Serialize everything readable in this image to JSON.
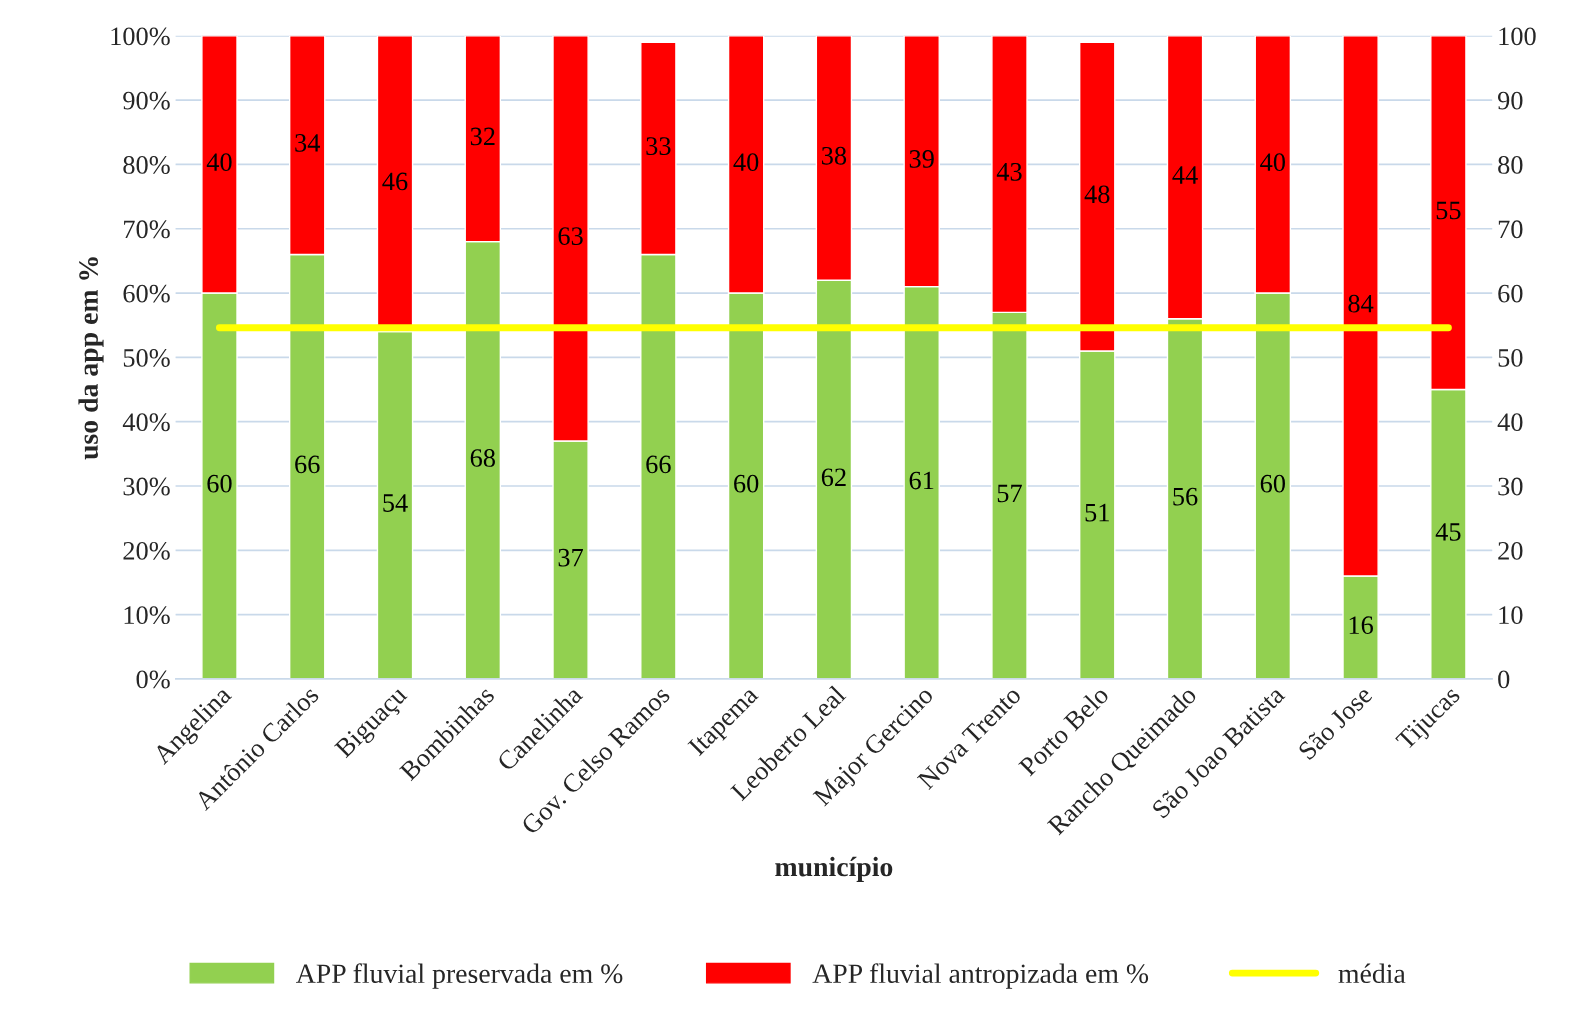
{
  "chart_data": {
    "type": "bar",
    "stacked": true,
    "xlabel": "município",
    "ylabel": "uso da app em %",
    "categories": [
      "Angelina",
      "Antônio Carlos",
      "Biguaçu",
      "Bombinhas",
      "Canelinha",
      "Gov. Celso Ramos",
      "Itapema",
      "Leoberto Leal",
      "Major Gercino",
      "Nova Trento",
      "Porto Belo",
      "Rancho Queimado",
      "São Joao Batista",
      "São Jose",
      "Tijucas"
    ],
    "series": [
      {
        "name": "APP fluvial preservada em %",
        "color": "#92d050",
        "values": [
          60,
          66,
          54,
          68,
          37,
          66,
          60,
          62,
          61,
          57,
          51,
          56,
          60,
          16,
          45
        ],
        "value_labels": [
          "60",
          "66",
          "54",
          "68",
          "37",
          "66",
          "60",
          "62",
          "61",
          "57",
          "51",
          "56",
          "60",
          "16",
          "45"
        ]
      },
      {
        "name": "APP fluvial antropizada em %",
        "color": "#ff0000",
        "values": [
          40,
          34,
          46,
          32,
          63,
          33,
          40,
          38,
          39,
          43,
          48,
          44,
          40,
          84,
          55
        ],
        "value_labels": [
          "40",
          "34",
          "46",
          "32",
          "63",
          "33",
          "40",
          "38",
          "39",
          "43",
          "48",
          "44",
          "40",
          "84",
          "55"
        ]
      },
      {
        "name": "média",
        "type": "line",
        "axis": "y2",
        "color": "#ffff00",
        "values": [
          54.6,
          54.6,
          54.6,
          54.6,
          54.6,
          54.6,
          54.6,
          54.6,
          54.6,
          54.6,
          54.6,
          54.6,
          54.6,
          54.6,
          54.6
        ]
      }
    ],
    "ylim": [
      0,
      100
    ],
    "yticks": [
      {
        "value": 0,
        "label": "0%"
      },
      {
        "value": 10,
        "label": "10%"
      },
      {
        "value": 20,
        "label": "20%"
      },
      {
        "value": 30,
        "label": "30%"
      },
      {
        "value": 40,
        "label": "40%"
      },
      {
        "value": 50,
        "label": "50%"
      },
      {
        "value": 60,
        "label": "60%"
      },
      {
        "value": 70,
        "label": "70%"
      },
      {
        "value": 80,
        "label": "80%"
      },
      {
        "value": 90,
        "label": "90%"
      },
      {
        "value": 100,
        "label": "100%"
      }
    ],
    "y2lim": [
      0,
      100
    ],
    "y2ticks": [
      0,
      10,
      20,
      30,
      40,
      50,
      60,
      70,
      80,
      90,
      100
    ],
    "grid": "y",
    "legend": "bottom",
    "marker": "none",
    "line_style": "solid"
  }
}
